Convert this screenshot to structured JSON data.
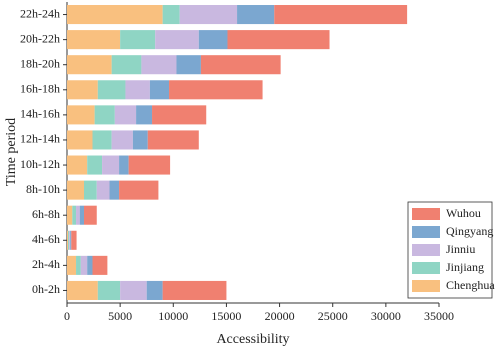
{
  "chart_data": {
    "type": "stacked-bar-horizontal",
    "x_label": "Accessibility",
    "y_label": "Time period",
    "categories": [
      "0h-2h",
      "2h-4h",
      "4h-6h",
      "6h-8h",
      "8h-10h",
      "10h-12h",
      "12h-14h",
      "14h-16h",
      "16h-18h",
      "18h-20h",
      "20h-22h",
      "22h-24h"
    ],
    "series": [
      {
        "name": "Chenghua",
        "color": "#f9c07f",
        "values": [
          2900,
          850,
          100,
          500,
          1600,
          1900,
          2400,
          2600,
          2900,
          4200,
          5000,
          9000
        ]
      },
      {
        "name": "Jinjiang",
        "color": "#8fd5c4",
        "values": [
          2100,
          450,
          100,
          350,
          1200,
          1400,
          1800,
          1900,
          2600,
          2800,
          3300,
          1600
        ]
      },
      {
        "name": "Jinniu",
        "color": "#c9b8e0",
        "values": [
          2500,
          600,
          100,
          350,
          1200,
          1600,
          2000,
          2000,
          2300,
          3300,
          4100,
          5400
        ]
      },
      {
        "name": "Qingyang",
        "color": "#7ba7d0",
        "values": [
          1500,
          500,
          100,
          400,
          900,
          900,
          1400,
          1500,
          1800,
          2300,
          2700,
          3500
        ]
      },
      {
        "name": "Wuhou",
        "color": "#f08070",
        "values": [
          6000,
          1400,
          500,
          1200,
          3700,
          3900,
          4800,
          5100,
          8800,
          7500,
          9600,
          12500
        ]
      }
    ],
    "xlim": [
      0,
      35000
    ],
    "xticks": [
      0,
      5000,
      10000,
      15000,
      20000,
      25000,
      30000,
      35000
    ],
    "legend": "lower-right"
  }
}
